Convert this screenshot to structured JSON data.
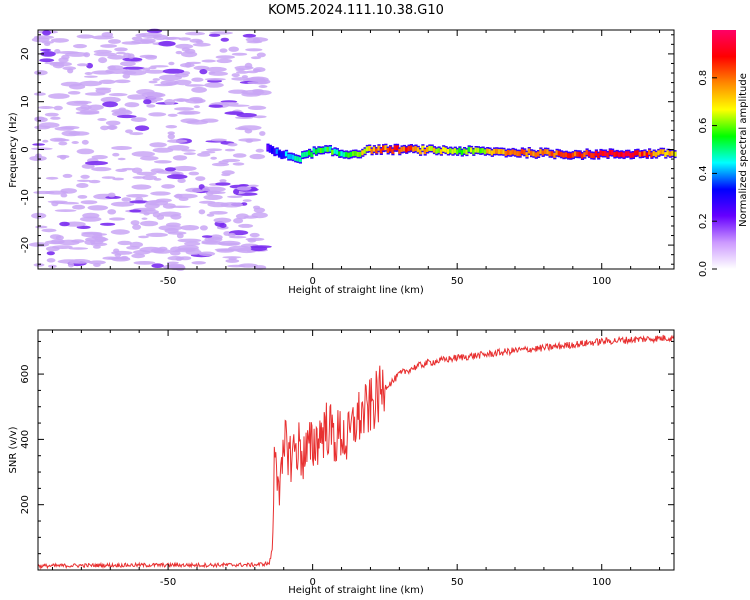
{
  "title": "KOM5.2024.111.10.38.G10",
  "chart_data": [
    {
      "type": "heatmap",
      "xlabel": "Height of straight line (km)",
      "ylabel": "Frequency (Hz)",
      "xlim": [
        -95,
        125
      ],
      "ylim": [
        -25,
        25
      ],
      "xticks": [
        -50,
        0,
        50,
        100
      ],
      "xtick_labels": [
        "-50",
        "0",
        "50",
        "100"
      ],
      "yticks": [
        -20,
        -10,
        0,
        10,
        20
      ],
      "ytick_labels": [
        "-20",
        "-10",
        "0",
        "10",
        "20"
      ],
      "colorbar": {
        "label": "Normalized spectral amplitude",
        "range": [
          0,
          1
        ],
        "ticks": [
          0.0,
          0.2,
          0.4,
          0.6,
          0.8
        ],
        "tick_labels": [
          "0.0",
          "0.2",
          "0.4",
          "0.6",
          "0.8"
        ],
        "colormap": [
          "#ffffff",
          "#cc99ff",
          "#6600ff",
          "#0000ff",
          "#00ffff",
          "#00ff00",
          "#ffff00",
          "#ff8800",
          "#ff0000",
          "#ff0066"
        ]
      },
      "noise_region_x": [
        -95,
        -17
      ],
      "signal_track": [
        {
          "x": -16,
          "f": 0.5,
          "amp": 0.25
        },
        {
          "x": -12,
          "f": -1.0,
          "amp": 0.35
        },
        {
          "x": -5,
          "f": -1.8,
          "amp": 0.45
        },
        {
          "x": 0,
          "f": -0.5,
          "amp": 0.55
        },
        {
          "x": 5,
          "f": -0.2,
          "amp": 0.55
        },
        {
          "x": 10,
          "f": -1.0,
          "amp": 0.5
        },
        {
          "x": 15,
          "f": -0.8,
          "amp": 0.6
        },
        {
          "x": 20,
          "f": 0.0,
          "amp": 0.75
        },
        {
          "x": 30,
          "f": 0.0,
          "amp": 0.85
        },
        {
          "x": 50,
          "f": -0.3,
          "amp": 0.55
        },
        {
          "x": 70,
          "f": -0.6,
          "amp": 0.8
        },
        {
          "x": 90,
          "f": -1.0,
          "amp": 0.85
        },
        {
          "x": 110,
          "f": -0.9,
          "amp": 0.9
        },
        {
          "x": 125,
          "f": -0.8,
          "amp": 0.7
        }
      ]
    },
    {
      "type": "line",
      "xlabel": "Height of straight line (km)",
      "ylabel": "SNR (v/v)",
      "xlim": [
        -95,
        125
      ],
      "ylim": [
        0,
        735
      ],
      "xticks": [
        -50,
        0,
        50,
        100
      ],
      "xtick_labels": [
        "-50",
        "0",
        "50",
        "100"
      ],
      "yticks": [
        200,
        400,
        600
      ],
      "ytick_labels": [
        "200",
        "400",
        "600"
      ],
      "color": "#e83030",
      "series": [
        {
          "x": [
            -95,
            -80,
            -60,
            -40,
            -20,
            -15,
            -14,
            -13,
            -12,
            -11,
            -10,
            -9,
            -8,
            -7,
            -5,
            -3,
            0,
            3,
            5,
            8,
            10,
            12,
            15,
            18,
            20,
            22,
            25,
            28,
            30,
            35,
            40,
            50,
            60,
            70,
            80,
            90,
            100,
            110,
            125
          ],
          "y": [
            12,
            14,
            15,
            15,
            16,
            20,
            60,
            400,
            300,
            250,
            330,
            420,
            340,
            360,
            380,
            350,
            380,
            420,
            440,
            400,
            420,
            390,
            460,
            480,
            500,
            520,
            560,
            580,
            600,
            620,
            635,
            650,
            660,
            672,
            680,
            690,
            700,
            705,
            712
          ]
        }
      ]
    }
  ]
}
